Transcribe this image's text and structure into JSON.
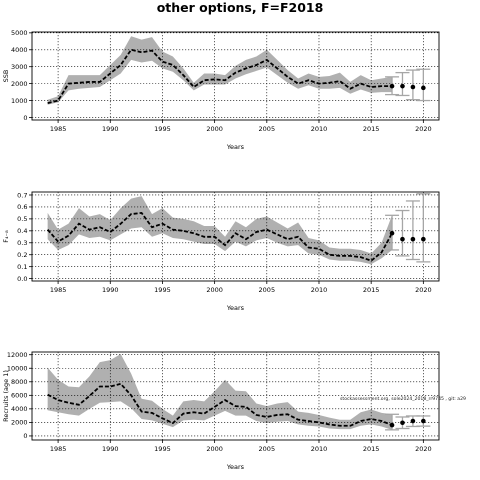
{
  "title": "other options, F=F2018",
  "watermark": "stockassessment.org, sole2024_2018_rr9745 , git: a29",
  "colors": {
    "band": "#b0b0b0",
    "line": "#000000",
    "forecast": "#a6a6a6",
    "grid": "#000000"
  },
  "chart_data": [
    {
      "type": "line",
      "ylabel": "SSB",
      "xlabel": "Years",
      "xlim": [
        1982.5,
        2021.5
      ],
      "ylim": [
        -150,
        5050
      ],
      "xticks": [
        1985,
        1990,
        1995,
        2000,
        2005,
        2010,
        2015,
        2020
      ],
      "yticks": [
        0,
        1000,
        2000,
        3000,
        4000,
        5000
      ],
      "yticklabels": [
        "0",
        "1000",
        "2000",
        "3000",
        "4000",
        "5000"
      ],
      "grid": true,
      "series": [
        {
          "x": [
            1984,
            1985,
            1986,
            1987,
            1988,
            1989,
            1990,
            1991,
            1992,
            1993,
            1994,
            1995,
            1996,
            1997,
            1998,
            1999,
            2000,
            2001,
            2002,
            2003,
            2004,
            2005,
            2006,
            2007,
            2008,
            2009,
            2010,
            2011,
            2012,
            2013,
            2014,
            2015,
            2016,
            2017
          ],
          "values": [
            850,
            1000,
            2000,
            2050,
            2100,
            2100,
            2600,
            3100,
            4000,
            3850,
            3950,
            3300,
            3100,
            2500,
            1800,
            2200,
            2250,
            2200,
            2650,
            2900,
            3100,
            3400,
            2900,
            2400,
            2000,
            2200,
            2000,
            2050,
            2150,
            1700,
            2000,
            1800,
            1850,
            1850
          ],
          "lower": [
            750,
            900,
            1600,
            1700,
            1750,
            1800,
            2200,
            2600,
            3400,
            3250,
            3350,
            2900,
            2700,
            2200,
            1600,
            1950,
            1950,
            1950,
            2300,
            2550,
            2750,
            2950,
            2500,
            2050,
            1700,
            1900,
            1700,
            1700,
            1750,
            1400,
            1650,
            1450,
            1500,
            1500
          ],
          "upper": [
            1050,
            1250,
            2500,
            2500,
            2500,
            2500,
            3100,
            3700,
            4800,
            4600,
            4750,
            3900,
            3600,
            2900,
            2050,
            2600,
            2600,
            2500,
            3050,
            3400,
            3600,
            4000,
            3400,
            2800,
            2300,
            2600,
            2400,
            2450,
            2650,
            2100,
            2500,
            2200,
            2300,
            2400
          ]
        }
      ],
      "forecast": {
        "x": [
          2017,
          2018,
          2019,
          2020
        ],
        "values": [
          1850,
          1850,
          1800,
          1750
        ],
        "lower": [
          1350,
          1300,
          1050,
          1000
        ],
        "upper": [
          2400,
          2650,
          2800,
          2850
        ]
      }
    },
    {
      "type": "line",
      "ylabel": "F₄₋₈",
      "xlabel": "Years",
      "xlim": [
        1982.5,
        2021.5
      ],
      "ylim": [
        -0.02,
        0.725
      ],
      "xticks": [
        1985,
        1990,
        1995,
        2000,
        2005,
        2010,
        2015,
        2020
      ],
      "yticks": [
        0.0,
        0.1,
        0.2,
        0.3,
        0.4,
        0.5,
        0.6,
        0.7
      ],
      "yticklabels": [
        "0.0",
        "0.1",
        "0.2",
        "0.3",
        "0.4",
        "0.5",
        "0.6",
        "0.7"
      ],
      "grid": true,
      "series": [
        {
          "x": [
            1984,
            1985,
            1986,
            1987,
            1988,
            1989,
            1990,
            1991,
            1992,
            1993,
            1994,
            1995,
            1996,
            1997,
            1998,
            1999,
            2000,
            2001,
            2002,
            2003,
            2004,
            2005,
            2006,
            2007,
            2008,
            2009,
            2010,
            2011,
            2012,
            2013,
            2014,
            2015,
            2016,
            2017
          ],
          "values": [
            0.41,
            0.31,
            0.36,
            0.46,
            0.41,
            0.43,
            0.39,
            0.46,
            0.54,
            0.55,
            0.43,
            0.46,
            0.41,
            0.4,
            0.38,
            0.35,
            0.35,
            0.28,
            0.38,
            0.33,
            0.39,
            0.41,
            0.37,
            0.33,
            0.35,
            0.26,
            0.25,
            0.2,
            0.19,
            0.19,
            0.18,
            0.15,
            0.22,
            0.38
          ],
          "lower": [
            0.33,
            0.24,
            0.28,
            0.37,
            0.34,
            0.35,
            0.32,
            0.37,
            0.42,
            0.43,
            0.35,
            0.38,
            0.34,
            0.33,
            0.31,
            0.29,
            0.29,
            0.23,
            0.31,
            0.27,
            0.32,
            0.34,
            0.3,
            0.27,
            0.28,
            0.21,
            0.2,
            0.16,
            0.15,
            0.15,
            0.14,
            0.12,
            0.17,
            0.24
          ],
          "upper": [
            0.55,
            0.41,
            0.46,
            0.59,
            0.52,
            0.54,
            0.49,
            0.59,
            0.67,
            0.69,
            0.54,
            0.59,
            0.51,
            0.5,
            0.48,
            0.44,
            0.44,
            0.35,
            0.48,
            0.43,
            0.5,
            0.52,
            0.47,
            0.42,
            0.47,
            0.34,
            0.32,
            0.26,
            0.25,
            0.25,
            0.24,
            0.21,
            0.3,
            0.53
          ]
        }
      ],
      "forecast": {
        "x": [
          2017,
          2018,
          2019,
          2020
        ],
        "values": [
          0.38,
          0.33,
          0.33,
          0.33
        ],
        "lower": [
          0.24,
          0.19,
          0.16,
          0.14
        ],
        "upper": [
          0.53,
          0.57,
          0.65,
          0.71
        ]
      }
    },
    {
      "type": "line",
      "ylabel": "Recruits (age 1)",
      "xlabel": "Years",
      "xlim": [
        1982.5,
        2021.5
      ],
      "ylim": [
        -600,
        12400
      ],
      "xticks": [
        1985,
        1990,
        1995,
        2000,
        2005,
        2010,
        2015,
        2020
      ],
      "yticks": [
        0,
        2000,
        4000,
        6000,
        8000,
        10000,
        12000
      ],
      "yticklabels": [
        "0",
        "2000",
        "4000",
        "6000",
        "8000",
        "10000",
        "12000"
      ],
      "grid": true,
      "series": [
        {
          "x": [
            1984,
            1985,
            1986,
            1987,
            1988,
            1989,
            1990,
            1991,
            1992,
            1993,
            1994,
            1995,
            1996,
            1997,
            1998,
            1999,
            2000,
            2001,
            2002,
            2003,
            2004,
            2005,
            2006,
            2007,
            2008,
            2009,
            2010,
            2011,
            2012,
            2013,
            2014,
            2015,
            2016,
            2017
          ],
          "values": [
            6100,
            5300,
            4900,
            4600,
            5900,
            7300,
            7300,
            7700,
            6000,
            3600,
            3400,
            2600,
            1900,
            3300,
            3500,
            3300,
            4300,
            5300,
            4400,
            4300,
            3100,
            2800,
            3100,
            3200,
            2400,
            2200,
            2000,
            1700,
            1500,
            1500,
            2200,
            2500,
            2200,
            1600
          ],
          "lower": [
            3800,
            3500,
            3200,
            3000,
            4000,
            4900,
            5000,
            5100,
            4100,
            2500,
            2300,
            1800,
            1300,
            2300,
            2400,
            2300,
            3000,
            3700,
            3000,
            3000,
            2200,
            1900,
            2100,
            2200,
            1700,
            1500,
            1400,
            1100,
            1000,
            1000,
            1500,
            1700,
            1400,
            900
          ],
          "upper": [
            10100,
            8300,
            7300,
            7200,
            8800,
            10900,
            11200,
            12100,
            9200,
            5500,
            5200,
            4000,
            3000,
            5100,
            5300,
            5100,
            6600,
            8300,
            6700,
            6600,
            4800,
            4400,
            4800,
            5000,
            3600,
            3400,
            3100,
            2700,
            2400,
            2400,
            3500,
            3900,
            3400,
            3200
          ]
        }
      ],
      "forecast": {
        "x": [
          2017,
          2018,
          2019,
          2020
        ],
        "values": [
          1600,
          1950,
          2200,
          2200
        ],
        "lower": [
          900,
          1100,
          1400,
          1450
        ],
        "upper": [
          3200,
          2800,
          2950,
          2950
        ]
      }
    }
  ]
}
